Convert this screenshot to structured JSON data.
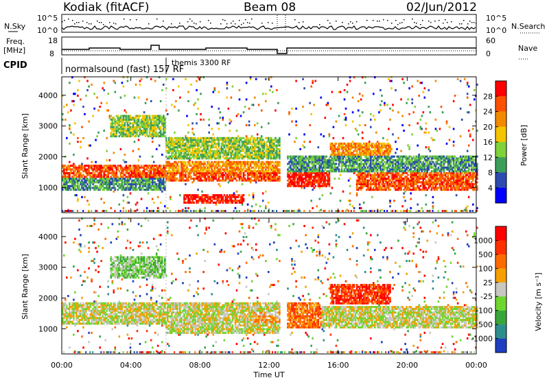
{
  "header": {
    "radar": "Kodiak (fitACF)",
    "beam": "Beam 08",
    "date": "02/Jun/2012"
  },
  "meta_panels": {
    "nsky_label": "N.Sky",
    "nsearch_label": "N.Search",
    "nsky_ticks": [
      "10^5",
      "10^0"
    ],
    "freq_label_1": "Freq.",
    "freq_label_2": "[MHz]",
    "freq_ticks": [
      "18",
      "8"
    ],
    "nave_label": "Nave",
    "nave_ticks": [
      "60",
      "0"
    ],
    "cpid_label": "CPID",
    "cpid_1": "normalsound (fast) 157 RF",
    "cpid_2": "themis 3300 RF"
  },
  "chart_data": [
    {
      "type": "heatmap",
      "title": "",
      "ylabel": "Slant Range [km]",
      "xlabel": "",
      "x_ticks": [
        "00:00",
        "04:00",
        "08:00",
        "12:00",
        "16:00",
        "20:00",
        "00:00"
      ],
      "xlim": [
        0,
        24
      ],
      "y_ticks": [
        1000,
        2000,
        3000,
        4000
      ],
      "ylim": [
        180,
        4600
      ],
      "colorbar": {
        "label": "Power [dB]",
        "ticks": [
          "4",
          "8",
          "12",
          "16",
          "20",
          "24",
          "28"
        ],
        "colors": [
          "#0000ff",
          "#2e4bb0",
          "#3d9e5a",
          "#7fd23a",
          "#f5c400",
          "#f28a00",
          "#ff5000",
          "#ff0000"
        ]
      },
      "bands": [
        {
          "t0": 0.0,
          "t1": 6.0,
          "r0": 1300,
          "r1": 1700,
          "level": 6
        },
        {
          "t0": 0.0,
          "t1": 6.0,
          "r0": 900,
          "r1": 1300,
          "level": 2
        },
        {
          "t0": 2.8,
          "t1": 6.0,
          "r0": 2600,
          "r1": 3300,
          "level": 3
        },
        {
          "t0": 6.0,
          "t1": 12.6,
          "r0": 1150,
          "r1": 1450,
          "level": 6
        },
        {
          "t0": 6.0,
          "t1": 12.6,
          "r0": 1500,
          "r1": 1800,
          "level": 5
        },
        {
          "t0": 6.0,
          "t1": 12.6,
          "r0": 1900,
          "r1": 2600,
          "level": 3
        },
        {
          "t0": 7.0,
          "t1": 10.5,
          "r0": 450,
          "r1": 750,
          "level": 7
        },
        {
          "t0": 13.0,
          "t1": 15.5,
          "r0": 1000,
          "r1": 1700,
          "level": 7
        },
        {
          "t0": 15.5,
          "t1": 19.0,
          "r0": 1800,
          "r1": 2400,
          "level": 5
        },
        {
          "t0": 17.0,
          "t1": 24.0,
          "r0": 900,
          "r1": 1500,
          "level": 6
        },
        {
          "t0": 13.0,
          "t1": 24.0,
          "r0": 1500,
          "r1": 2000,
          "level": 2
        }
      ]
    },
    {
      "type": "heatmap",
      "title": "",
      "ylabel": "Slant Range [km]",
      "xlabel": "Time UT",
      "x_ticks": [
        "00:00",
        "04:00",
        "08:00",
        "12:00",
        "16:00",
        "20:00",
        "00:00"
      ],
      "xlim": [
        0,
        24
      ],
      "y_ticks": [
        1000,
        2000,
        3000,
        4000
      ],
      "ylim": [
        180,
        4600
      ],
      "colorbar": {
        "label": "Velocity [m s⁻¹]",
        "ticks": [
          "1000",
          "500",
          "100",
          "25",
          "-25",
          "-100",
          "-500",
          "-1000"
        ],
        "colors": [
          "#1f3fbf",
          "#2e8e8e",
          "#3aa63a",
          "#6fd630",
          "#c8c8c0",
          "#f5a000",
          "#ff6a00",
          "#ff3000",
          "#ff0000"
        ]
      },
      "bands": [
        {
          "t0": 0.0,
          "t1": 6.0,
          "r0": 1100,
          "r1": 1800,
          "level": 4
        },
        {
          "t0": 2.8,
          "t1": 6.0,
          "r0": 2600,
          "r1": 3300,
          "level": 3
        },
        {
          "t0": 6.0,
          "t1": 12.6,
          "r0": 800,
          "r1": 1800,
          "level": 4
        },
        {
          "t0": 11.0,
          "t1": 12.6,
          "r0": 1200,
          "r1": 1500,
          "level": 5
        },
        {
          "t0": 13.0,
          "t1": 15.0,
          "r0": 1000,
          "r1": 1800,
          "level": 6
        },
        {
          "t0": 15.5,
          "t1": 19.0,
          "r0": 1800,
          "r1": 2400,
          "level": 7
        },
        {
          "t0": 15.0,
          "t1": 24.0,
          "r0": 1000,
          "r1": 1700,
          "level": 4
        }
      ]
    }
  ]
}
